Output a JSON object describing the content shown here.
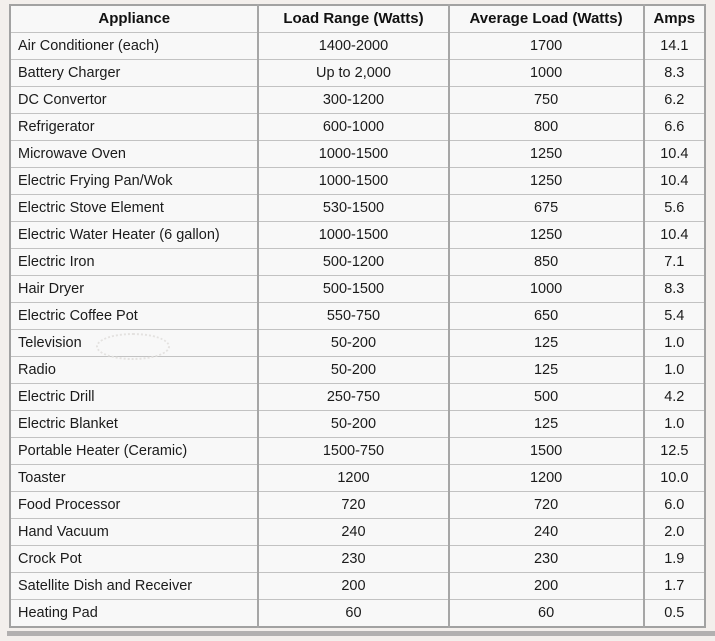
{
  "page": {
    "background_color": "#f3efec",
    "table_background_color": "#f8f8f8",
    "border_color": "#a6a6a6",
    "bottom_bar_color": "#b2b0b0"
  },
  "chart_data": {
    "type": "table",
    "columns": [
      "Appliance",
      "Load Range (Watts)",
      "Average Load (Watts)",
      "Amps"
    ],
    "rows": [
      [
        "Air Conditioner (each)",
        "1400-2000",
        "1700",
        "14.1"
      ],
      [
        "Battery Charger",
        "Up to 2,000",
        "1000",
        "8.3"
      ],
      [
        "DC Convertor",
        "300-1200",
        "750",
        "6.2"
      ],
      [
        "Refrigerator",
        "600-1000",
        "800",
        "6.6"
      ],
      [
        "Microwave Oven",
        "1000-1500",
        "1250",
        "10.4"
      ],
      [
        "Electric Frying Pan/Wok",
        "1000-1500",
        "1250",
        "10.4"
      ],
      [
        "Electric Stove Element",
        "530-1500",
        "675",
        "5.6"
      ],
      [
        "Electric Water Heater (6 gallon)",
        "1000-1500",
        "1250",
        "10.4"
      ],
      [
        "Electric Iron",
        "500-1200",
        "850",
        "7.1"
      ],
      [
        "Hair Dryer",
        "500-1500",
        "1000",
        "8.3"
      ],
      [
        "Electric Coffee Pot",
        "550-750",
        "650",
        "5.4"
      ],
      [
        "Television",
        "50-200",
        "125",
        "1.0"
      ],
      [
        "Radio",
        "50-200",
        "125",
        "1.0"
      ],
      [
        "Electric Drill",
        "250-750",
        "500",
        "4.2"
      ],
      [
        "Electric Blanket",
        "50-200",
        "125",
        "1.0"
      ],
      [
        "Portable Heater (Ceramic)",
        "1500-750",
        "1500",
        "12.5"
      ],
      [
        "Toaster",
        "1200",
        "1200",
        "10.0"
      ],
      [
        "Food Processor",
        "720",
        "720",
        "6.0"
      ],
      [
        "Hand Vacuum",
        "240",
        "240",
        "2.0"
      ],
      [
        "Crock Pot",
        "230",
        "230",
        "1.9"
      ],
      [
        "Satellite Dish and Receiver",
        "200",
        "200",
        "1.7"
      ],
      [
        "Heating Pad",
        "60",
        "60",
        "0.5"
      ]
    ]
  }
}
